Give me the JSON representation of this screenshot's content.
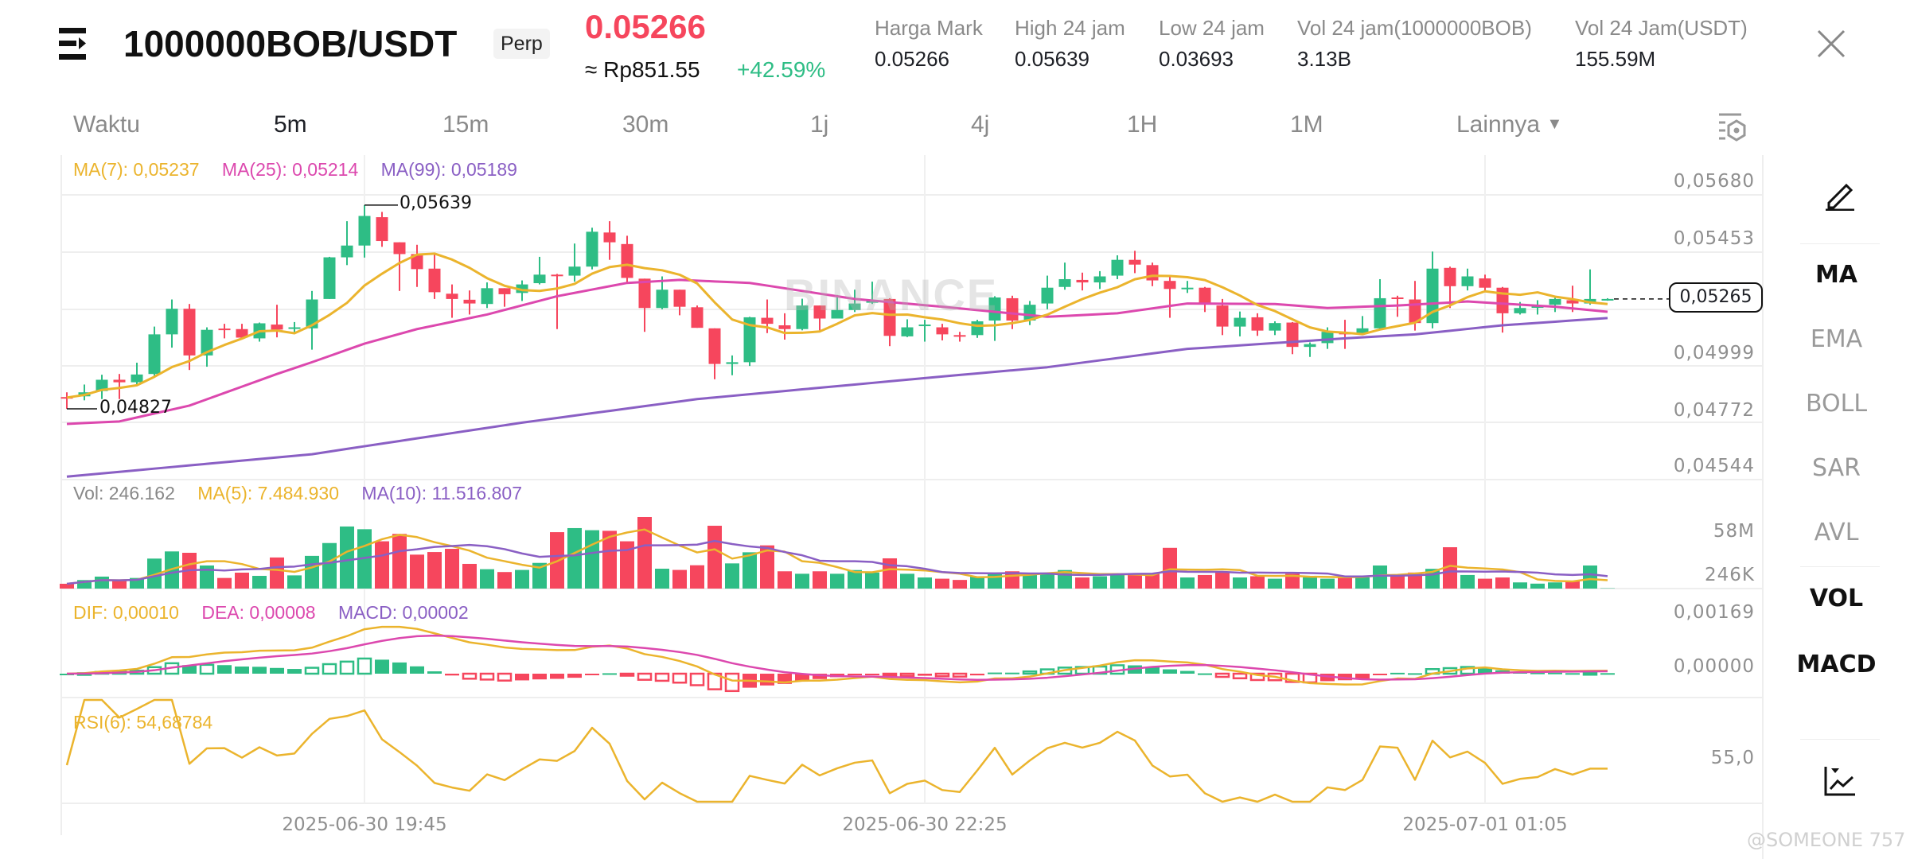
{
  "header": {
    "symbol": "1000000BOB/USDT",
    "badge": "Perp",
    "price": "0.05266",
    "fiat_price": "≈ Rp851.55",
    "change": "+42.59%",
    "stats": [
      {
        "label": "Harga Mark",
        "value": "0.05266"
      },
      {
        "label": "High 24 jam",
        "value": "0.05639"
      },
      {
        "label": "Low 24 jam",
        "value": "0.03693"
      },
      {
        "label": "Vol 24 jam(1000000BOB)",
        "value": "3.13B"
      },
      {
        "label": "Vol 24 Jam(USDT)",
        "value": "155.59M"
      }
    ]
  },
  "tabs": {
    "time_label": "Waktu",
    "intervals": [
      "5m",
      "15m",
      "30m",
      "1j",
      "4j",
      "1H",
      "1M"
    ],
    "active": "5m",
    "more": "Lainnya"
  },
  "legends": {
    "ma7": "MA(7): 0,05237",
    "ma25": "MA(25): 0,05214",
    "ma99": "MA(99): 0,05189",
    "vol": "Vol: 246.162",
    "vol_ma5": "MA(5): 7.484.930",
    "vol_ma10": "MA(10): 11.516.807",
    "dif": "DIF: 0,00010",
    "dea": "DEA: 0,00008",
    "macd": "MACD: 0,00002",
    "rsi": "RSI(6): 54,68784"
  },
  "axes": {
    "price": [
      "0,05680",
      "0,05453",
      "0,04999",
      "0,04772",
      "0,04544"
    ],
    "volume": [
      "58M",
      "246K"
    ],
    "macd": [
      "0,00169",
      "0,00000"
    ],
    "rsi": [
      "55,0"
    ],
    "time": [
      "2025-06-30 19:45",
      "2025-06-30 22:25",
      "2025-07-01 01:05"
    ]
  },
  "annotations": {
    "high": "0,05639",
    "low": "0,04827",
    "last_price": "0,05265"
  },
  "side_panel": [
    "MA",
    "EMA",
    "BOLL",
    "SAR",
    "AVL",
    "VOL",
    "MACD"
  ],
  "side_active": [
    "MA",
    "VOL",
    "MACD"
  ],
  "watermark": "BINANCE",
  "credit": "@SOMEONE 757",
  "colors": {
    "up": "#2EBD85",
    "down": "#F6465D",
    "ma7": "#EBB42D",
    "ma25": "#DC48AE",
    "ma99": "#8A5FC4"
  },
  "chart_data": {
    "type": "candlestick",
    "interval": "5m",
    "price_range": [
      0.04544,
      0.0568
    ],
    "candles_ohlc": [
      [
        0.04874,
        0.04893,
        0.04827,
        0.04872
      ],
      [
        0.04877,
        0.04924,
        0.04861,
        0.04893
      ],
      [
        0.04898,
        0.04963,
        0.04866,
        0.04943
      ],
      [
        0.04943,
        0.04966,
        0.04866,
        0.04933
      ],
      [
        0.04933,
        0.05011,
        0.04919,
        0.04964
      ],
      [
        0.04966,
        0.05155,
        0.04956,
        0.05124
      ],
      [
        0.05124,
        0.05263,
        0.05071,
        0.05226
      ],
      [
        0.05226,
        0.05245,
        0.04982,
        0.0504
      ],
      [
        0.0504,
        0.05152,
        0.04995,
        0.05142
      ],
      [
        0.05147,
        0.05166,
        0.05108,
        0.05143
      ],
      [
        0.05145,
        0.05166,
        0.05108,
        0.05111
      ],
      [
        0.05108,
        0.05171,
        0.05095,
        0.05168
      ],
      [
        0.05163,
        0.05242,
        0.05112,
        0.05143
      ],
      [
        0.05148,
        0.05173,
        0.05129,
        0.05152
      ],
      [
        0.05148,
        0.05297,
        0.05063,
        0.05263
      ],
      [
        0.05265,
        0.05433,
        0.05265,
        0.05431
      ],
      [
        0.05431,
        0.05575,
        0.054,
        0.05478
      ],
      [
        0.05478,
        0.05639,
        0.0543,
        0.05596
      ],
      [
        0.05591,
        0.05612,
        0.05473,
        0.05496
      ],
      [
        0.05491,
        0.05491,
        0.05297,
        0.05444
      ],
      [
        0.05444,
        0.05481,
        0.05313,
        0.05384
      ],
      [
        0.05386,
        0.05444,
        0.05265,
        0.05292
      ],
      [
        0.05286,
        0.05323,
        0.0519,
        0.05265
      ],
      [
        0.05262,
        0.05299,
        0.05203,
        0.05247
      ],
      [
        0.05245,
        0.05331,
        0.05229,
        0.05308
      ],
      [
        0.05308,
        0.05308,
        0.05234,
        0.05284
      ],
      [
        0.05289,
        0.05339,
        0.05257,
        0.05323
      ],
      [
        0.05328,
        0.05433,
        0.05323,
        0.05362
      ],
      [
        0.05362,
        0.05365,
        0.05145,
        0.05358
      ],
      [
        0.05358,
        0.05486,
        0.05334,
        0.05394
      ],
      [
        0.05394,
        0.05549,
        0.05383,
        0.05533
      ],
      [
        0.0553,
        0.05575,
        0.05421,
        0.05491
      ],
      [
        0.05484,
        0.05517,
        0.05329,
        0.05349
      ],
      [
        0.05346,
        0.05346,
        0.05134,
        0.05229
      ],
      [
        0.05229,
        0.05355,
        0.05224,
        0.05302
      ],
      [
        0.05302,
        0.05302,
        0.052,
        0.05234
      ],
      [
        0.05232,
        0.05239,
        0.0515,
        0.0515
      ],
      [
        0.05148,
        0.05148,
        0.04945,
        0.05006
      ],
      [
        0.05006,
        0.0504,
        0.04961,
        0.05013
      ],
      [
        0.05013,
        0.05194,
        0.04998,
        0.05192
      ],
      [
        0.0519,
        0.05263,
        0.05129,
        0.05166
      ],
      [
        0.0516,
        0.05208,
        0.05103,
        0.05145
      ],
      [
        0.05145,
        0.05266,
        0.0514,
        0.05239
      ],
      [
        0.05239,
        0.05239,
        0.0514,
        0.05187
      ],
      [
        0.05187,
        0.05281,
        0.05187,
        0.05221
      ],
      [
        0.05221,
        0.05302,
        0.05213,
        0.05247
      ],
      [
        0.0525,
        0.05334,
        0.05245,
        0.05257
      ],
      [
        0.05265,
        0.05268,
        0.05077,
        0.05118
      ],
      [
        0.05116,
        0.05184,
        0.05113,
        0.05152
      ],
      [
        0.05158,
        0.05182,
        0.05095,
        0.05163
      ],
      [
        0.05152,
        0.05166,
        0.051,
        0.05124
      ],
      [
        0.05121,
        0.05134,
        0.05095,
        0.05116
      ],
      [
        0.05121,
        0.05182,
        0.0511,
        0.05176
      ],
      [
        0.05179,
        0.05276,
        0.05098,
        0.05271
      ],
      [
        0.05268,
        0.05278,
        0.05145,
        0.05179
      ],
      [
        0.05179,
        0.05257,
        0.05161,
        0.05242
      ],
      [
        0.05247,
        0.05358,
        0.05224,
        0.0531
      ],
      [
        0.05313,
        0.0541,
        0.05302,
        0.05344
      ],
      [
        0.05341,
        0.0537,
        0.05299,
        0.05331
      ],
      [
        0.05331,
        0.05376,
        0.05305,
        0.05355
      ],
      [
        0.05358,
        0.05439,
        0.05344,
        0.05421
      ],
      [
        0.05421,
        0.05457,
        0.05368,
        0.05402
      ],
      [
        0.054,
        0.0541,
        0.05316,
        0.05339
      ],
      [
        0.05337,
        0.05355,
        0.0519,
        0.05305
      ],
      [
        0.05305,
        0.05337,
        0.05289,
        0.0531
      ],
      [
        0.0531,
        0.05313,
        0.05213,
        0.0525
      ],
      [
        0.05239,
        0.05265,
        0.05121,
        0.05155
      ],
      [
        0.05155,
        0.05215,
        0.05116,
        0.0519
      ],
      [
        0.05192,
        0.05208,
        0.05118,
        0.05139
      ],
      [
        0.05139,
        0.05176,
        0.05121,
        0.05169
      ],
      [
        0.05171,
        0.05173,
        0.05045,
        0.05074
      ],
      [
        0.05074,
        0.05092,
        0.05034,
        0.05085
      ],
      [
        0.05089,
        0.05152,
        0.05066,
        0.05134
      ],
      [
        0.05131,
        0.05182,
        0.05066,
        0.05124
      ],
      [
        0.05129,
        0.05197,
        0.05124,
        0.05148
      ],
      [
        0.05148,
        0.05344,
        0.05145,
        0.05268
      ],
      [
        0.05271,
        0.05278,
        0.05194,
        0.05265
      ],
      [
        0.05263,
        0.05337,
        0.05139,
        0.05169
      ],
      [
        0.05169,
        0.05454,
        0.05148,
        0.05386
      ],
      [
        0.05389,
        0.05394,
        0.05229,
        0.05316
      ],
      [
        0.05316,
        0.05386,
        0.05299,
        0.05355
      ],
      [
        0.05347,
        0.05362,
        0.05292,
        0.0531
      ],
      [
        0.0531,
        0.05313,
        0.05131,
        0.05208
      ],
      [
        0.05208,
        0.05253,
        0.05203,
        0.05229
      ],
      [
        0.05232,
        0.0526,
        0.05203,
        0.05236
      ],
      [
        0.05242,
        0.05278,
        0.05213,
        0.05265
      ],
      [
        0.0526,
        0.05318,
        0.05213,
        0.05247
      ],
      [
        0.05247,
        0.05383,
        0.05242,
        0.05265
      ],
      [
        0.05262,
        0.05268,
        0.05258,
        0.05265
      ]
    ],
    "volume_millions": [
      3.9,
      6.9,
      9.7,
      6.4,
      8.6,
      24.3,
      30.1,
      29,
      18.7,
      8.6,
      12.9,
      10.3,
      25.2,
      10.7,
      26.5,
      36.9,
      50.3,
      48.1,
      38.3,
      44.3,
      27.5,
      29.6,
      32.2,
      20,
      15.7,
      13.4,
      15.1,
      20.8,
      45.7,
      49,
      47.3,
      46.8,
      38.3,
      58,
      16.1,
      15.1,
      18.9,
      50.9,
      20.4,
      29.4,
      35,
      14,
      12,
      14,
      12,
      15,
      13,
      24.5,
      12,
      9,
      8,
      7,
      10,
      13,
      14,
      12,
      13,
      15,
      9,
      10,
      12,
      11,
      12,
      33,
      9,
      11,
      13,
      9,
      10,
      8,
      12,
      9,
      8,
      9,
      9,
      18.7,
      11,
      13,
      16,
      33.5,
      11,
      8,
      9,
      5,
      4,
      5,
      6,
      18.7,
      0.25
    ],
    "volume_range_millions": [
      0,
      58
    ],
    "ma25_points": [
      [
        0,
        0.04767
      ],
      [
        3,
        0.04777
      ],
      [
        7,
        0.0484
      ],
      [
        12,
        0.04966
      ],
      [
        14,
        0.05013
      ],
      [
        17,
        0.05087
      ],
      [
        20,
        0.05145
      ],
      [
        24,
        0.05203
      ],
      [
        28,
        0.05276
      ],
      [
        32,
        0.05329
      ],
      [
        35,
        0.05341
      ],
      [
        39,
        0.05329
      ],
      [
        45,
        0.05265
      ],
      [
        50,
        0.05234
      ],
      [
        56,
        0.05194
      ],
      [
        60,
        0.05208
      ],
      [
        64,
        0.05247
      ],
      [
        69,
        0.05245
      ],
      [
        72,
        0.05229
      ],
      [
        76,
        0.05239
      ],
      [
        80,
        0.05255
      ],
      [
        85,
        0.05234
      ],
      [
        88,
        0.05214
      ]
    ],
    "ma99_points": [
      [
        0,
        0.04557
      ],
      [
        14,
        0.04646
      ],
      [
        17,
        0.04678
      ],
      [
        26,
        0.04772
      ],
      [
        36,
        0.04866
      ],
      [
        45,
        0.04924
      ],
      [
        50,
        0.04956
      ],
      [
        56,
        0.04993
      ],
      [
        64,
        0.05066
      ],
      [
        73,
        0.05108
      ],
      [
        77,
        0.05124
      ],
      [
        82,
        0.0516
      ],
      [
        88,
        0.05189
      ]
    ],
    "macd_range": [
      0,
      0.00169
    ],
    "rsi_reference": 55.0
  }
}
